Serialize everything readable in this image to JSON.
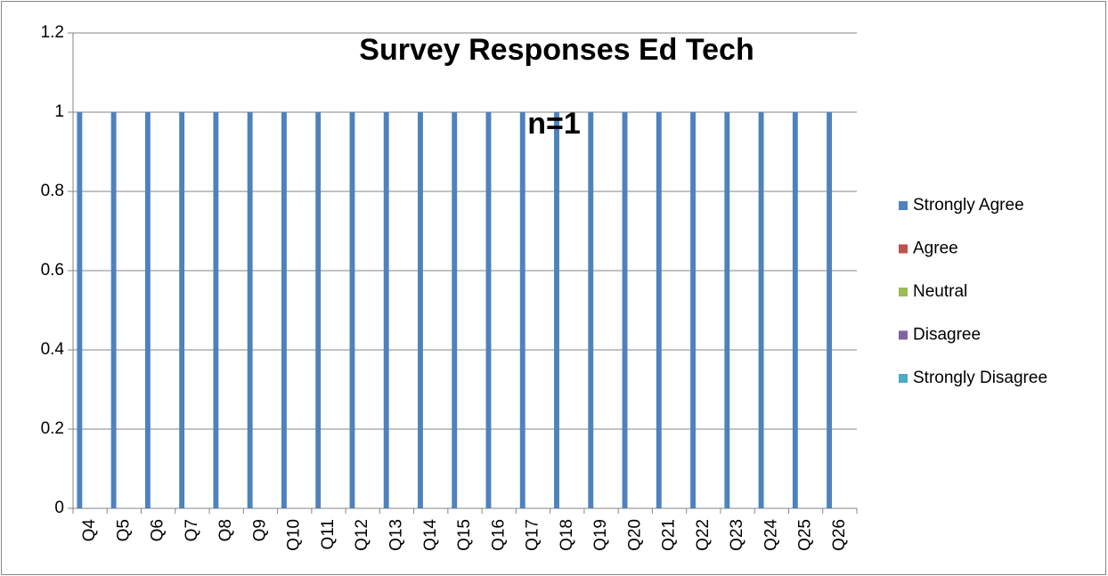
{
  "chart_data": {
    "type": "bar",
    "title": "Survey Responses Ed Tech",
    "subtitle": "n=1",
    "categories": [
      "Q4",
      "Q5",
      "Q6",
      "Q7",
      "Q8",
      "Q9",
      "Q10",
      "Q11",
      "Q12",
      "Q13",
      "Q14",
      "Q15",
      "Q16",
      "Q17",
      "Q18",
      "Q19",
      "Q20",
      "Q21",
      "Q22",
      "Q23",
      "Q24",
      "Q25",
      "Q26"
    ],
    "series": [
      {
        "name": "Strongly Agree",
        "color": "#4f81bd",
        "values": [
          1,
          1,
          1,
          1,
          1,
          1,
          1,
          1,
          1,
          1,
          1,
          1,
          1,
          1,
          1,
          1,
          1,
          1,
          1,
          1,
          1,
          1,
          1
        ]
      },
      {
        "name": "Agree",
        "color": "#c0504d",
        "values": [
          0,
          0,
          0,
          0,
          0,
          0,
          0,
          0,
          0,
          0,
          0,
          0,
          0,
          0,
          0,
          0,
          0,
          0,
          0,
          0,
          0,
          0,
          0
        ]
      },
      {
        "name": "Neutral",
        "color": "#9bbb59",
        "values": [
          0,
          0,
          0,
          0,
          0,
          0,
          0,
          0,
          0,
          0,
          0,
          0,
          0,
          0,
          0,
          0,
          0,
          0,
          0,
          0,
          0,
          0,
          0
        ]
      },
      {
        "name": "Disagree",
        "color": "#8064a2",
        "values": [
          0,
          0,
          0,
          0,
          0,
          0,
          0,
          0,
          0,
          0,
          0,
          0,
          0,
          0,
          0,
          0,
          0,
          0,
          0,
          0,
          0,
          0,
          0
        ]
      },
      {
        "name": "Strongly Disagree",
        "color": "#4bacc6",
        "values": [
          0,
          0,
          0,
          0,
          0,
          0,
          0,
          0,
          0,
          0,
          0,
          0,
          0,
          0,
          0,
          0,
          0,
          0,
          0,
          0,
          0,
          0,
          0
        ]
      }
    ],
    "ylim": [
      0,
      1.2
    ],
    "yticks": [
      0,
      0.2,
      0.4,
      0.6,
      0.8,
      1,
      1.2
    ],
    "grid": true,
    "legend": "right"
  }
}
